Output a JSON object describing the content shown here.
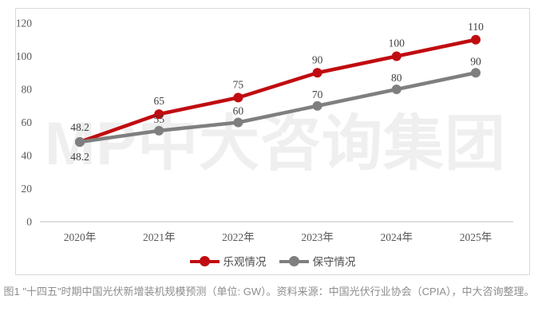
{
  "watermark": "MP中大咨询集团",
  "caption": "图1 \"十四五\"时期中国光伏新增装机规模预测（单位: GW）。资料来源：中国光伏行业协会（CPIA），中大咨询整理。",
  "colors": {
    "optimistic": "#c00c10",
    "conservative": "#7f7f7f",
    "axis_line": "#c9c9c9",
    "tick_text": "#595959",
    "data_label_text": "#3f3f3f",
    "watermark_text": "#efefef",
    "box_border": "#d9d9d9",
    "caption_text": "#8e8e8e"
  },
  "chart_data": {
    "type": "line",
    "categories": [
      "2020年",
      "2021年",
      "2022年",
      "2023年",
      "2024年",
      "2025年"
    ],
    "series": [
      {
        "name": "乐观情况",
        "color_key": "optimistic",
        "values": [
          48.2,
          65,
          75,
          90,
          100,
          110
        ]
      },
      {
        "name": "保守情况",
        "color_key": "conservative",
        "values": [
          48.2,
          55,
          60,
          70,
          80,
          90
        ]
      }
    ],
    "title": "",
    "xlabel": "",
    "ylabel": "",
    "unit": "GW",
    "ylim": [
      0,
      120
    ],
    "ytick_step": 20,
    "grid": false,
    "legend_position": "bottom",
    "data_labels": true
  }
}
